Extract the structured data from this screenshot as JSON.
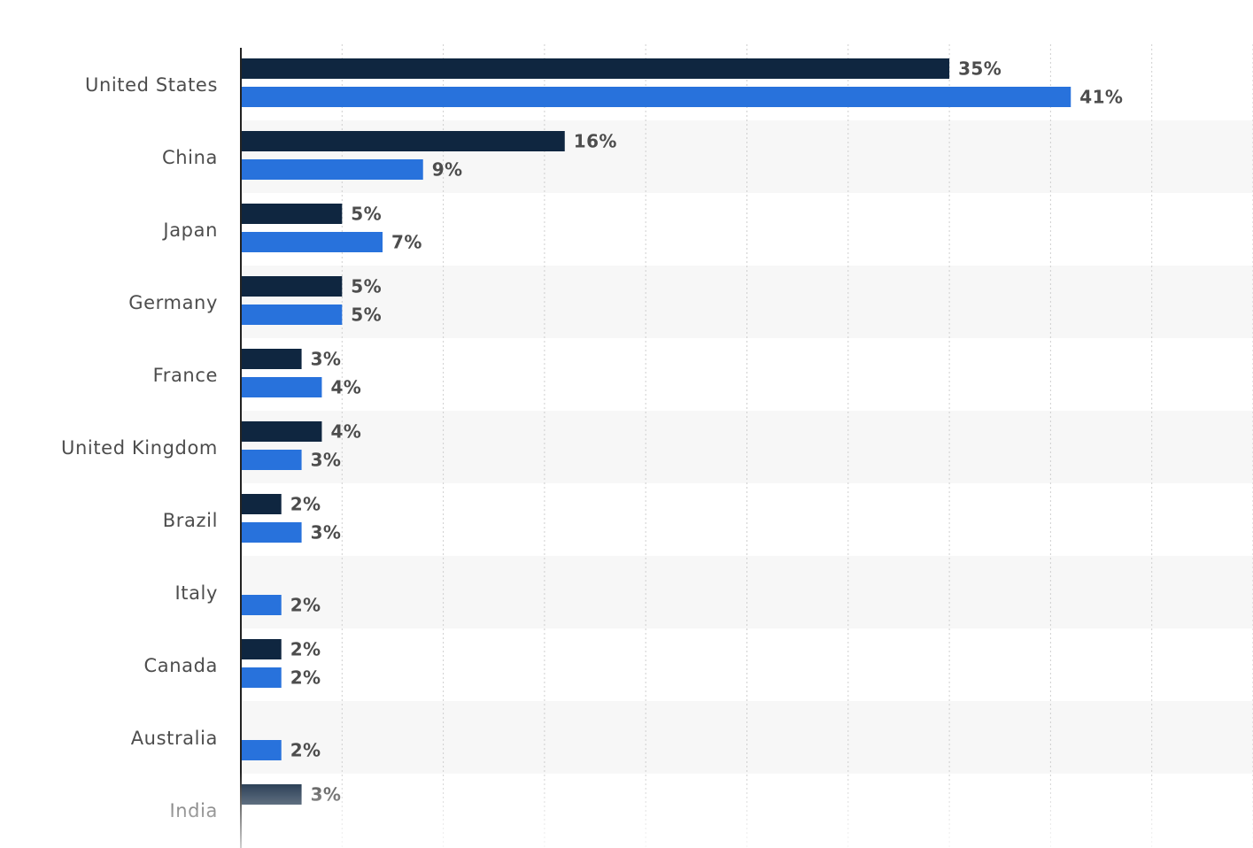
{
  "chart_data": {
    "type": "bar",
    "orientation": "horizontal",
    "categories": [
      "United States",
      "China",
      "Japan",
      "Germany",
      "France",
      "United Kingdom",
      "Brazil",
      "Italy",
      "Canada",
      "Australia",
      "India"
    ],
    "series": [
      {
        "color": "#0f2640",
        "values": [
          35,
          16,
          5,
          5,
          3,
          4,
          2,
          null,
          2,
          null,
          3
        ],
        "labels": [
          "35%",
          "16%",
          "5%",
          "5%",
          "3%",
          "4%",
          "2%",
          null,
          "2%",
          null,
          "3%"
        ]
      },
      {
        "color": "#2872dc",
        "values": [
          41,
          9,
          7,
          5,
          4,
          3,
          3,
          2,
          2,
          2,
          null
        ],
        "labels": [
          "41%",
          "9%",
          "7%",
          "5%",
          "4%",
          "3%",
          "3%",
          "2%",
          "2%",
          "2%",
          null
        ]
      }
    ],
    "xlim": [
      0,
      50
    ],
    "grid": true,
    "legend": "none"
  }
}
